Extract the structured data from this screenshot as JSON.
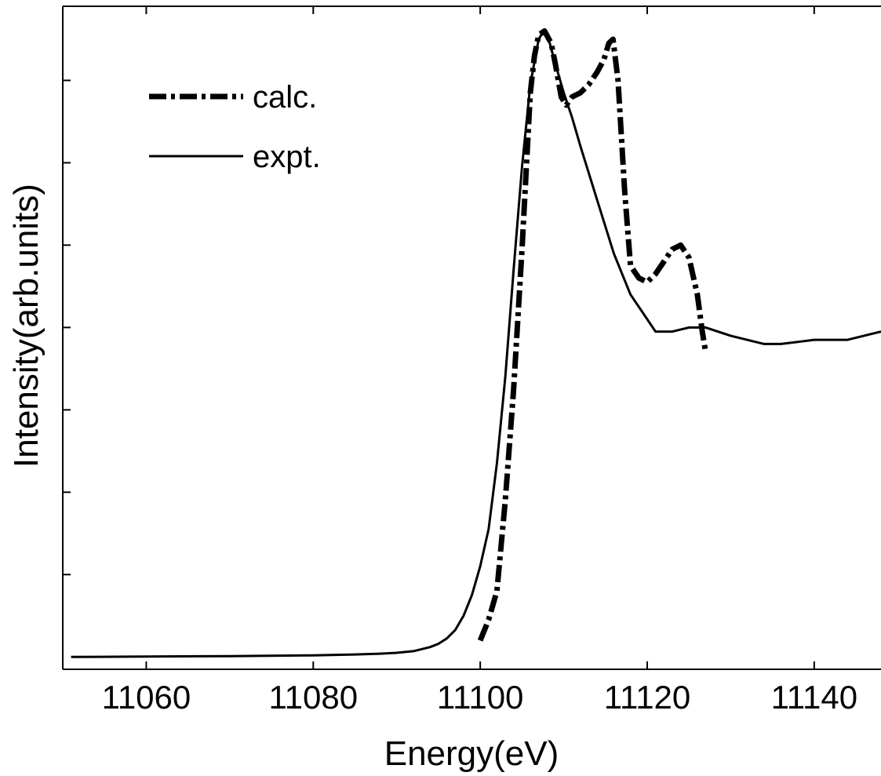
{
  "chart_data": {
    "type": "line",
    "xlabel": "Energy(eV)",
    "ylabel": "Intensity(arb.units)",
    "xlim": [
      11050,
      11148
    ],
    "ylim": [
      -0.03,
      1.58
    ],
    "x_ticks": [
      11060,
      11080,
      11100,
      11120,
      11140
    ],
    "x_tick_labels": [
      "11060",
      "11080",
      "11100",
      "11120",
      "11140"
    ],
    "y_ticks": [
      0.2,
      0.4,
      0.6,
      0.8,
      1.0,
      1.2,
      1.4
    ],
    "y_tick_labels_shown": false,
    "grid": false,
    "legend_position": "top-left",
    "series": [
      {
        "name": "calc.",
        "style": "dash-dot",
        "color": "#000000",
        "x": [
          11100.0,
          11101.0,
          11102.0,
          11103.0,
          11104.0,
          11105.0,
          11106.0,
          11106.5,
          11107.0,
          11107.7,
          11108.5,
          11109.0,
          11109.7,
          11110.3,
          11111.0,
          11112.0,
          11113.0,
          11114.0,
          11114.8,
          11115.4,
          11115.9,
          11116.5,
          11117.3,
          11118.0,
          11119.0,
          11120.0,
          11121.0,
          11122.0,
          11123.0,
          11124.0,
          11125.0,
          11126.0,
          11126.6,
          11127.0
        ],
        "y": [
          0.04,
          0.09,
          0.16,
          0.38,
          0.65,
          0.99,
          1.37,
          1.46,
          1.51,
          1.52,
          1.49,
          1.44,
          1.36,
          1.34,
          1.36,
          1.37,
          1.39,
          1.42,
          1.45,
          1.49,
          1.5,
          1.4,
          1.13,
          0.95,
          0.92,
          0.91,
          0.93,
          0.96,
          0.99,
          1.0,
          0.97,
          0.88,
          0.79,
          0.74
        ]
      },
      {
        "name": "expt.",
        "style": "solid",
        "color": "#000000",
        "x": [
          11051,
          11060,
          11070,
          11080,
          11085,
          11088,
          11090,
          11092,
          11094,
          11095,
          11096,
          11097,
          11098,
          11099,
          11100,
          11101,
          11102,
          11103,
          11104,
          11105,
          11106,
          11107,
          11107.6,
          11108.2,
          11109.0,
          11110.0,
          11111.0,
          11112.0,
          11114.0,
          11116.0,
          11118.0,
          11120.0,
          11121.0,
          11123.0,
          11125.0,
          11127.0,
          11130.0,
          11134.0,
          11136.0,
          11140.0,
          11144.0,
          11148.0
        ],
        "y": [
          0.0,
          0.001,
          0.002,
          0.004,
          0.006,
          0.008,
          0.01,
          0.014,
          0.024,
          0.032,
          0.045,
          0.065,
          0.1,
          0.15,
          0.22,
          0.31,
          0.47,
          0.68,
          0.94,
          1.19,
          1.39,
          1.5,
          1.52,
          1.5,
          1.44,
          1.37,
          1.31,
          1.24,
          1.11,
          0.98,
          0.88,
          0.82,
          0.79,
          0.79,
          0.8,
          0.8,
          0.78,
          0.76,
          0.76,
          0.77,
          0.77,
          0.79
        ]
      }
    ]
  }
}
